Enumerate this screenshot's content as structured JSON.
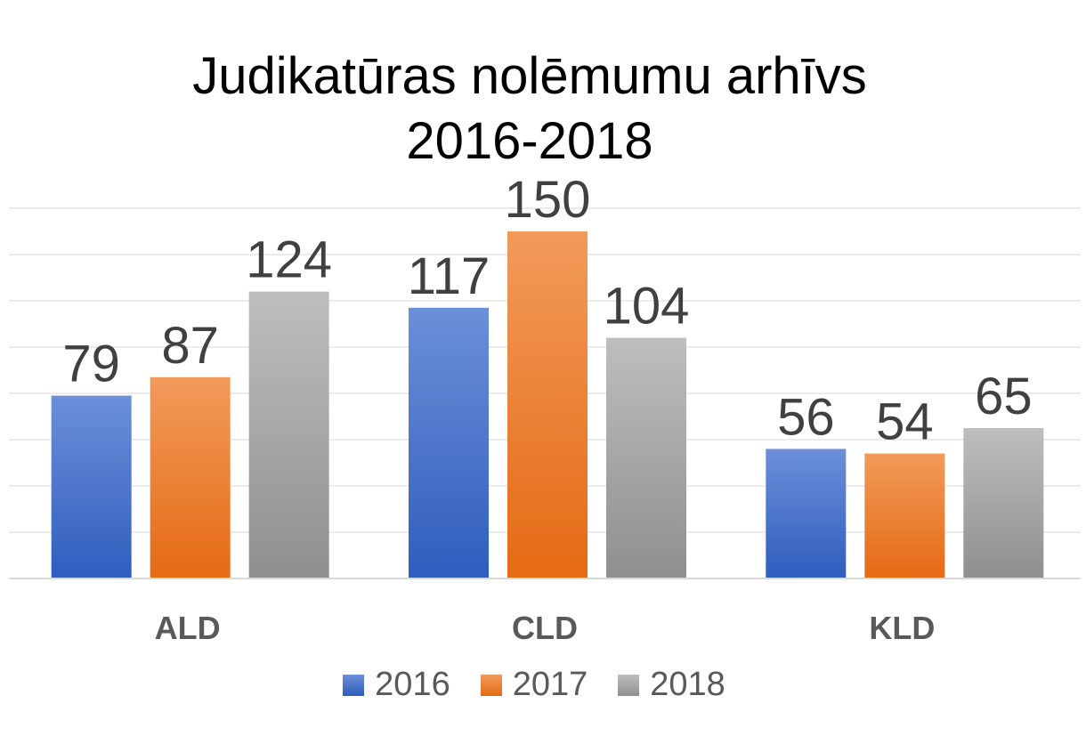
{
  "chart_data": {
    "type": "bar",
    "title": "Judikatūras nolēmumu arhīvs",
    "subtitle": "2016-2018",
    "categories": [
      "ALD",
      "CLD",
      "KLD"
    ],
    "series": [
      {
        "name": "2016",
        "values": [
          79,
          117,
          56
        ],
        "color": "#4472C4"
      },
      {
        "name": "2017",
        "values": [
          87,
          150,
          54
        ],
        "color": "#ED7D31"
      },
      {
        "name": "2018",
        "values": [
          124,
          104,
          65
        ],
        "color": "#A5A5A5"
      }
    ],
    "ylim": [
      0,
      160
    ],
    "grid": true,
    "data_labels": true,
    "legend_position": "bottom"
  }
}
